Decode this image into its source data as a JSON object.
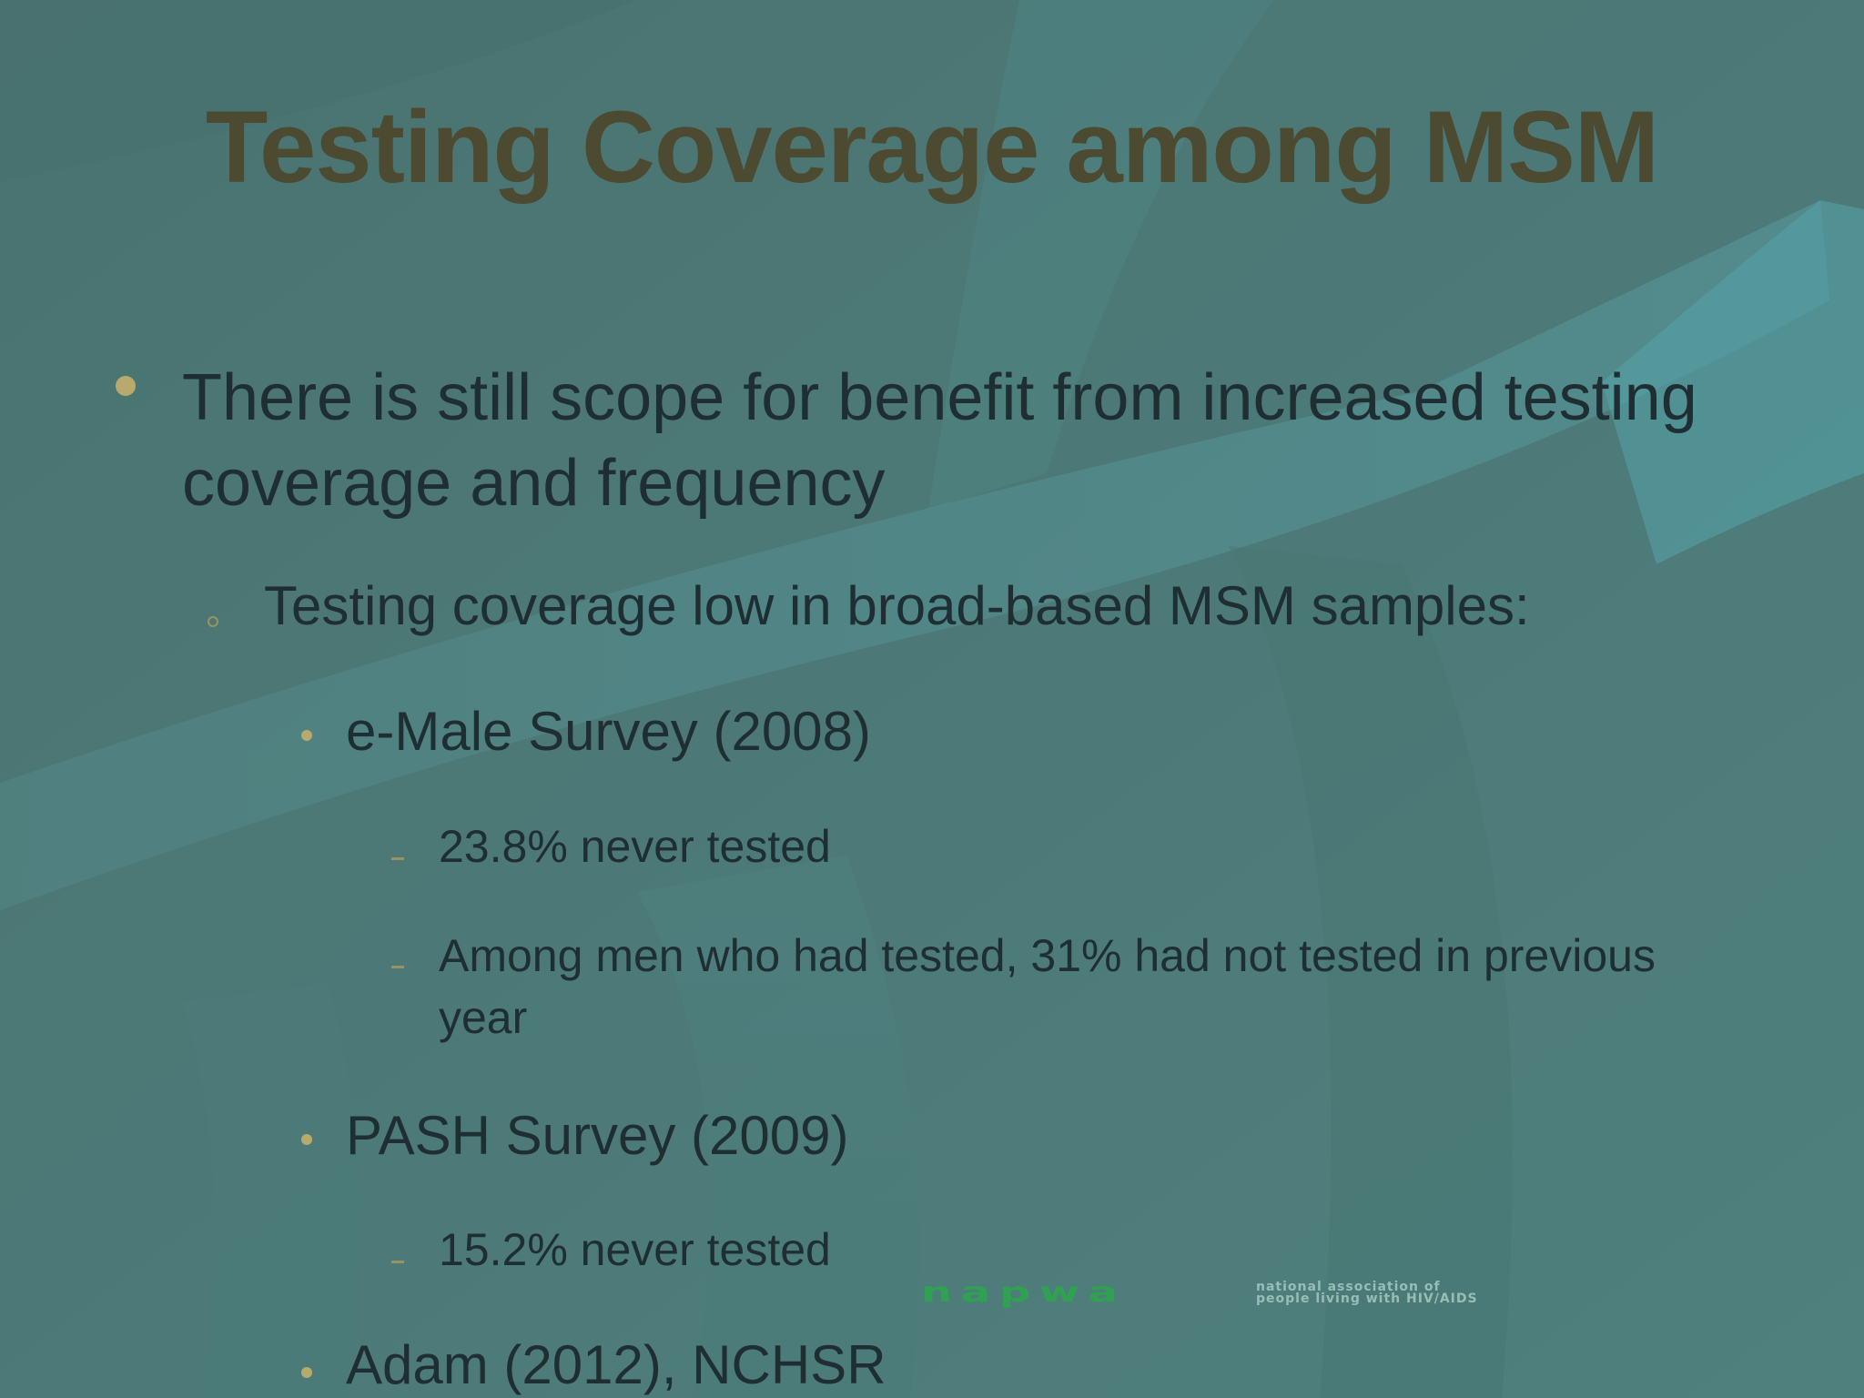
{
  "slide": {
    "title": "Testing Coverage among MSM",
    "bullet1": "There is still scope for benefit from increased testing coverage and frequency",
    "sub1": "Testing coverage low in broad-based MSM samples:",
    "survey1": "e-Male Survey (2008)",
    "survey1_item1": "23.8% never tested",
    "survey1_item2": "Among men who had tested, 31% had not tested in previous year",
    "survey2": "PASH Survey (2009)",
    "survey2_item1": "15.2% never tested",
    "survey3": "Adam (2012), NCHSR"
  },
  "logo": {
    "name": "napwa",
    "description_line1": "national association of",
    "description_line2": "people living with HIV/AIDS"
  },
  "colors": {
    "background": "#4d7c7a",
    "title": "#4c4a30",
    "body_text": "#1e2e33",
    "bullet": "#b8a96c",
    "logo_green": "#2aa84a"
  }
}
